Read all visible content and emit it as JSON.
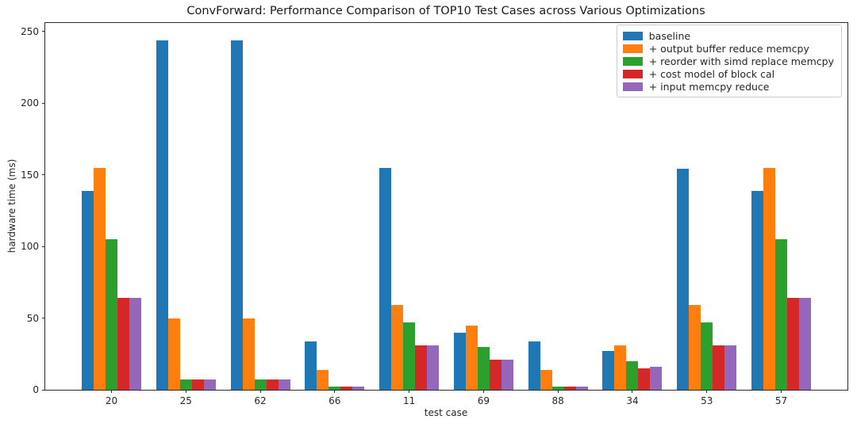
{
  "chart_data": {
    "type": "bar",
    "title": "ConvForward: Performance Comparison of TOP10 Test Cases across Various Optimizations",
    "xlabel": "test case",
    "ylabel": "hardware time (ms)",
    "ylim": [
      0,
      256
    ],
    "yticks": [
      0,
      50,
      100,
      150,
      200,
      250
    ],
    "grid": false,
    "legend_position": "upper right",
    "categories": [
      "20",
      "25",
      "62",
      "66",
      "11",
      "69",
      "88",
      "34",
      "53",
      "57"
    ],
    "series": [
      {
        "name": "baseline",
        "color": "#1f77b4",
        "values": [
          139,
          244,
          244,
          34,
          155,
          40,
          34,
          27,
          154,
          139
        ]
      },
      {
        "name": "+ output buffer reduce memcpy",
        "color": "#ff7f0e",
        "values": [
          155,
          50,
          50,
          14,
          59,
          45,
          14,
          31,
          59,
          155
        ]
      },
      {
        "name": "+ reorder with simd replace memcpy",
        "color": "#2ca02c",
        "values": [
          105,
          7,
          7,
          2,
          47,
          30,
          2,
          20,
          47,
          105
        ]
      },
      {
        "name": "+ cost model of block cal",
        "color": "#d62728",
        "values": [
          64,
          7,
          7,
          2,
          31,
          21,
          2,
          15,
          31,
          64
        ]
      },
      {
        "name": "+ input memcpy reduce",
        "color": "#9467bd",
        "values": [
          64,
          7,
          7,
          2,
          31,
          21,
          2,
          16,
          31,
          64
        ]
      }
    ]
  }
}
